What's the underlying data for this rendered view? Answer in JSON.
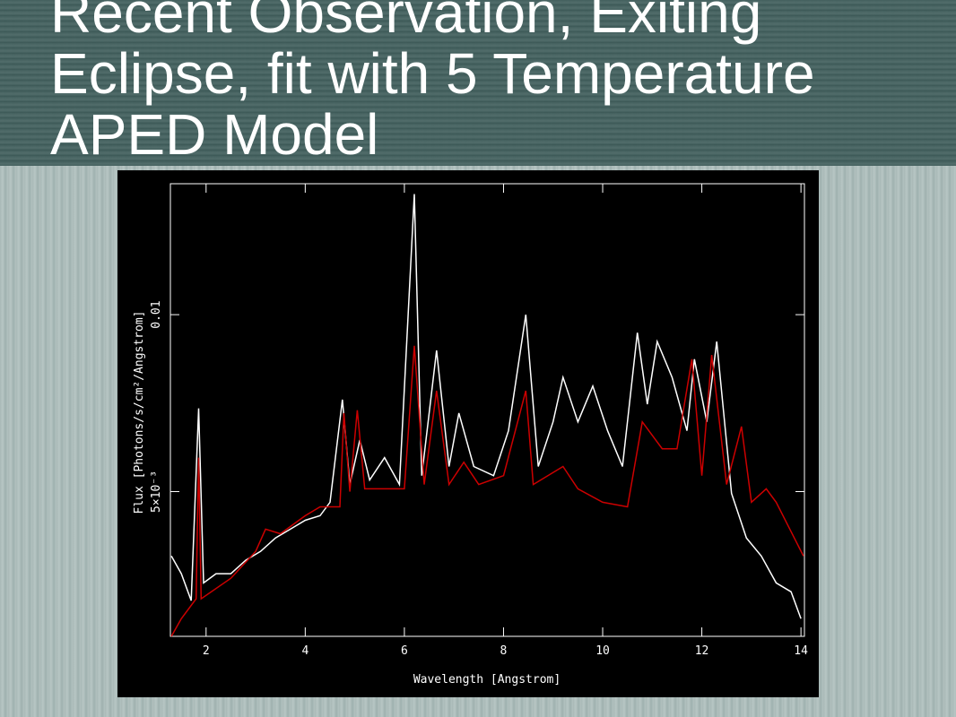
{
  "chart_data": {
    "type": "line",
    "title": "Recent Observation, Exiting Eclipse, fit with 5 Temperature APED Model",
    "x_label": "Wavelength [Angstrom]",
    "y_label": "Flux [Photons/s/cm²/Angstrom]",
    "xlim": [
      1.28,
      14.07
    ],
    "ylim": [
      0.00091,
      0.0137
    ],
    "xticks": [
      2,
      4,
      6,
      8,
      10,
      12,
      14
    ],
    "yticks": [
      {
        "value": 0.005,
        "label": "5×10⁻³"
      },
      0.01
    ],
    "series": [
      {
        "color": "#ffffff",
        "x": [
          1.3,
          1.5,
          1.7,
          1.85,
          1.95,
          2.2,
          2.5,
          2.8,
          3.1,
          3.4,
          3.7,
          4.0,
          4.3,
          4.5,
          4.75,
          4.9,
          5.1,
          5.3,
          5.6,
          5.9,
          6.2,
          6.35,
          6.65,
          6.9,
          7.1,
          7.4,
          7.8,
          8.1,
          8.45,
          8.7,
          9.0,
          9.2,
          9.5,
          9.8,
          10.1,
          10.4,
          10.7,
          10.9,
          11.1,
          11.4,
          11.7,
          11.85,
          12.1,
          12.3,
          12.6,
          12.9,
          13.2,
          13.5,
          13.8,
          14.0
        ],
        "values": [
          0.00318,
          0.00268,
          0.00192,
          0.00735,
          0.00242,
          0.00268,
          0.00268,
          0.00306,
          0.00331,
          0.00369,
          0.00394,
          0.00419,
          0.00432,
          0.0047,
          0.0076,
          0.0052,
          0.00646,
          0.00533,
          0.00596,
          0.0052,
          0.01341,
          0.00545,
          0.00899,
          0.00571,
          0.00722,
          0.00571,
          0.00545,
          0.00672,
          0.01,
          0.00571,
          0.00697,
          0.00823,
          0.00697,
          0.00798,
          0.00672,
          0.00571,
          0.00949,
          0.00747,
          0.00924,
          0.00823,
          0.00672,
          0.00874,
          0.00697,
          0.00924,
          0.00495,
          0.00369,
          0.00318,
          0.00242,
          0.00217,
          0.00141
        ]
      },
      {
        "color": "#cc0000",
        "x": [
          1.3,
          1.5,
          1.8,
          1.85,
          1.9,
          2.5,
          3.0,
          3.2,
          3.5,
          4.0,
          4.3,
          4.7,
          4.78,
          4.9,
          5.05,
          5.2,
          6.0,
          6.2,
          6.4,
          6.65,
          6.9,
          7.2,
          7.5,
          8.0,
          8.45,
          8.6,
          9.2,
          9.5,
          10.0,
          10.5,
          10.8,
          11.2,
          11.5,
          11.8,
          12.0,
          12.2,
          12.5,
          12.8,
          13.0,
          13.3,
          13.5,
          14.05
        ],
        "values": [
          0.00091,
          0.00141,
          0.00197,
          0.00596,
          0.00197,
          0.00255,
          0.00331,
          0.00394,
          0.00381,
          0.00432,
          0.00457,
          0.00457,
          0.00722,
          0.005,
          0.0073,
          0.00508,
          0.00508,
          0.00912,
          0.0052,
          0.00785,
          0.0052,
          0.00583,
          0.0052,
          0.00545,
          0.00785,
          0.0052,
          0.00571,
          0.00508,
          0.0047,
          0.00457,
          0.00697,
          0.00621,
          0.00621,
          0.00874,
          0.00545,
          0.00886,
          0.0052,
          0.00684,
          0.0047,
          0.00508,
          0.0047,
          0.00318
        ]
      }
    ]
  }
}
